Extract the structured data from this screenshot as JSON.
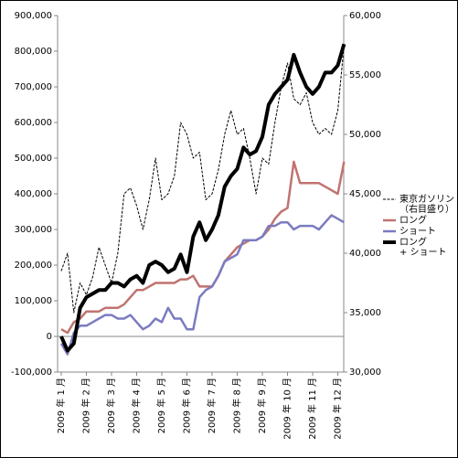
{
  "chart_data": {
    "type": "line",
    "categories": [
      "2009 年 1 月",
      null,
      null,
      null,
      "2009 年 2 月",
      null,
      null,
      null,
      "2009 年 3 月",
      null,
      null,
      null,
      "2009 年 4 月",
      null,
      null,
      null,
      "2009 年 5 月",
      null,
      null,
      null,
      "2009 年 6 月",
      null,
      null,
      null,
      "2009 年 7 月",
      null,
      null,
      null,
      "2009 年 8 月",
      null,
      null,
      null,
      "2009 年 9 月",
      null,
      null,
      null,
      "2009 年 10 月",
      null,
      null,
      null,
      "2009 年 11 月",
      null,
      null,
      null,
      "2009 年 12 月",
      null
    ],
    "series": [
      {
        "name": "東京ガソリン\n（右目盛り）",
        "color": "#000000",
        "axis": "y2",
        "dashed": true,
        "width": 1,
        "values": [
          38500,
          40000,
          35000,
          37500,
          36500,
          38000,
          40500,
          39000,
          37500,
          40000,
          45000,
          45500,
          44000,
          42000,
          44500,
          48000,
          44500,
          45000,
          46500,
          51000,
          50000,
          48000,
          48500,
          44500,
          45000,
          47000,
          50000,
          52000,
          50000,
          50500,
          48000,
          45000,
          48000,
          47500,
          51000,
          54000,
          56000,
          53000,
          52500,
          53500,
          51000,
          50000,
          50500,
          50000,
          52000,
          57500
        ]
      },
      {
        "name": "ロング",
        "color": "#c0736f",
        "width": 2.5,
        "values": [
          20000,
          10000,
          40000,
          50000,
          70000,
          70000,
          70000,
          80000,
          80000,
          80000,
          90000,
          110000,
          130000,
          130000,
          140000,
          150000,
          150000,
          150000,
          150000,
          160000,
          160000,
          170000,
          140000,
          140000,
          140000,
          170000,
          210000,
          230000,
          250000,
          260000,
          270000,
          270000,
          280000,
          300000,
          330000,
          350000,
          360000,
          490000,
          430000,
          430000,
          430000,
          430000,
          420000,
          410000,
          400000,
          490000
        ]
      },
      {
        "name": "ショート",
        "color": "#7b7bc0",
        "width": 2.5,
        "values": [
          -20000,
          -50000,
          10000,
          30000,
          30000,
          40000,
          50000,
          60000,
          60000,
          50000,
          50000,
          60000,
          40000,
          20000,
          30000,
          50000,
          40000,
          80000,
          50000,
          50000,
          20000,
          20000,
          110000,
          130000,
          140000,
          170000,
          210000,
          220000,
          230000,
          270000,
          270000,
          270000,
          280000,
          310000,
          310000,
          320000,
          320000,
          300000,
          310000,
          310000,
          310000,
          300000,
          320000,
          340000,
          330000,
          320000
        ]
      },
      {
        "name": "ロング\n+ ショート",
        "color": "#000000",
        "width": 4,
        "values": [
          0,
          -40000,
          -20000,
          80000,
          110000,
          120000,
          130000,
          130000,
          150000,
          150000,
          140000,
          160000,
          170000,
          150000,
          200000,
          210000,
          200000,
          180000,
          190000,
          230000,
          180000,
          280000,
          320000,
          270000,
          300000,
          340000,
          420000,
          450000,
          470000,
          530000,
          510000,
          520000,
          560000,
          650000,
          680000,
          700000,
          720000,
          790000,
          740000,
          700000,
          680000,
          700000,
          740000,
          740000,
          760000,
          820000
        ]
      }
    ],
    "ylim": [
      -100000,
      900000
    ],
    "yticks": [
      {
        "value": -100000,
        "label": "-100,000"
      },
      0,
      {
        "value": 100000,
        "label": "100,000"
      },
      {
        "value": 200000,
        "label": "200,000"
      },
      {
        "value": 300000,
        "label": "300,000"
      },
      {
        "value": 400000,
        "label": "400,000"
      },
      {
        "value": 500000,
        "label": "500,000"
      },
      {
        "value": 600000,
        "label": "600,000"
      },
      {
        "value": 700000,
        "label": "700,000"
      },
      {
        "value": 800000,
        "label": "800,000"
      },
      {
        "value": 900000,
        "label": "900,000"
      }
    ],
    "y2lim": [
      30000,
      60000
    ],
    "y2ticks": [
      {
        "value": 30000,
        "label": "30,000"
      },
      {
        "value": 35000,
        "label": "35,000"
      },
      {
        "value": 40000,
        "label": "40,000"
      },
      {
        "value": 45000,
        "label": "45,000"
      },
      {
        "value": 50000,
        "label": "50,000"
      },
      {
        "value": 55000,
        "label": "55,000"
      },
      {
        "value": 60000,
        "label": "60,000"
      }
    ],
    "legend": "right"
  }
}
